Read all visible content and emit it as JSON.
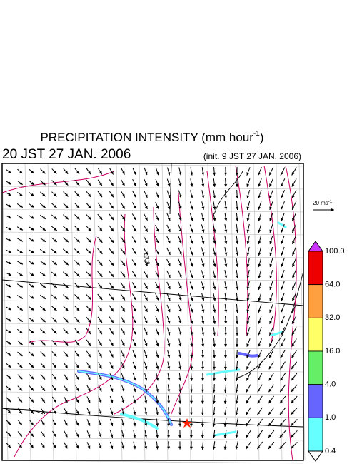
{
  "header": {
    "title": "PRECIPITATION INTENSITY (mm hour",
    "title_exponent": "-1",
    "title_close": ")",
    "valid_time": "20 JST 27 JAN. 2006",
    "init_time": "(init. 9 JST 27 JAN. 2006)"
  },
  "wind_scale": {
    "label": "20 ms",
    "exponent": "-1"
  },
  "contour_labels": [
    "1008"
  ],
  "colorbar": {
    "labels": [
      "100.0",
      "64.0",
      "32.0",
      "16.0",
      "4.0",
      "1.0",
      "0.4"
    ],
    "colors": [
      "#ee0000",
      "#ffa040",
      "#ffff66",
      "#66ee66",
      "#6666ff",
      "#66ffff"
    ],
    "over_color": "#cc33ff",
    "under_color": "#ffffff"
  }
}
